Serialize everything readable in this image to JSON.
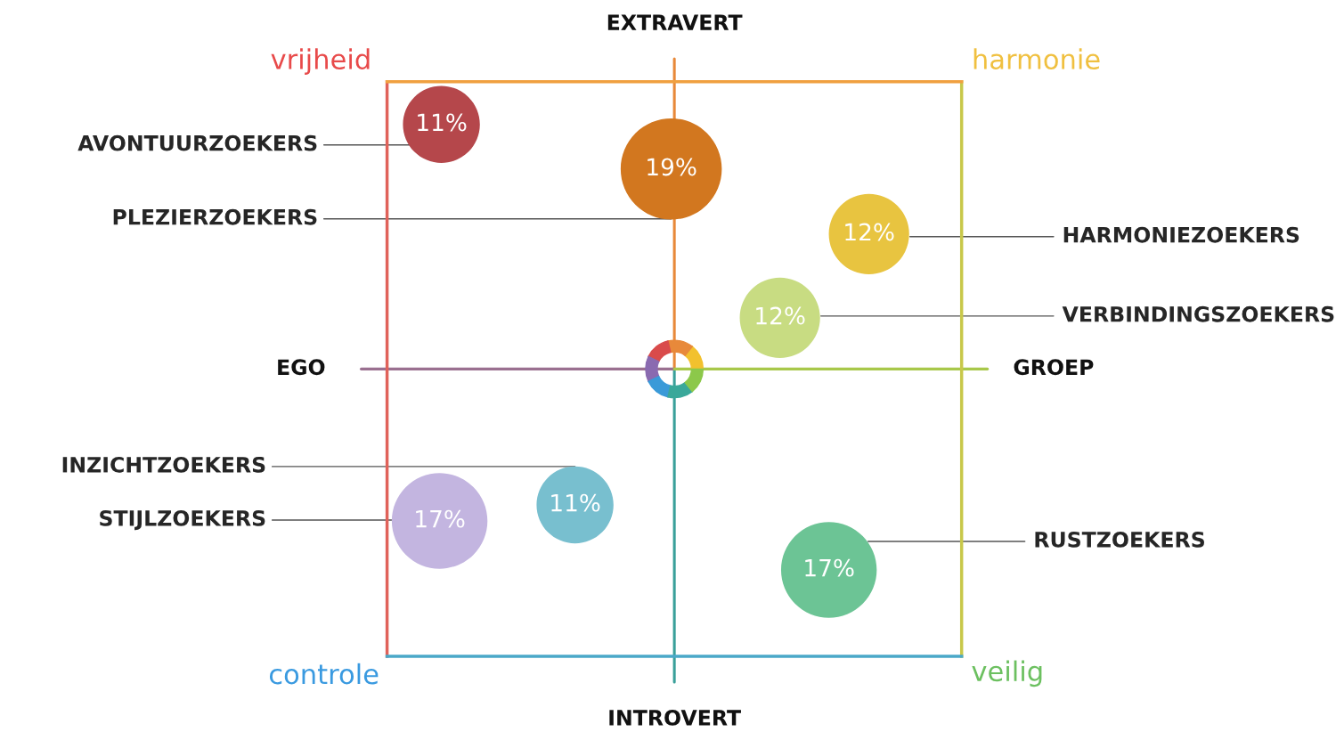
{
  "chart_data": {
    "type": "other",
    "categories": [
      "AVONTUURZOEKERS",
      "PLEZIERZOEKERS",
      "HARMONIEZOEKERS",
      "VERBINDINGSZOEKERS",
      "INZICHTZOEKERS",
      "STIJLZOEKERS",
      "RUSTZOEKERS"
    ],
    "values": [
      11,
      19,
      12,
      12,
      11,
      17,
      17
    ],
    "value_labels": [
      "11%",
      "19%",
      "12%",
      "12%",
      "11%",
      "17%",
      "17%"
    ],
    "colors": [
      "#b5474b",
      "#d2771f",
      "#e8c440",
      "#c8dc82",
      "#78bfcf",
      "#c3b5e0",
      "#6cc495"
    ],
    "annotations": [
      "EXTRAVERT",
      "INTROVERT",
      "EGO",
      "GROEP",
      "vrijheid",
      "harmonie",
      "controle",
      "veilig"
    ]
  }
}
